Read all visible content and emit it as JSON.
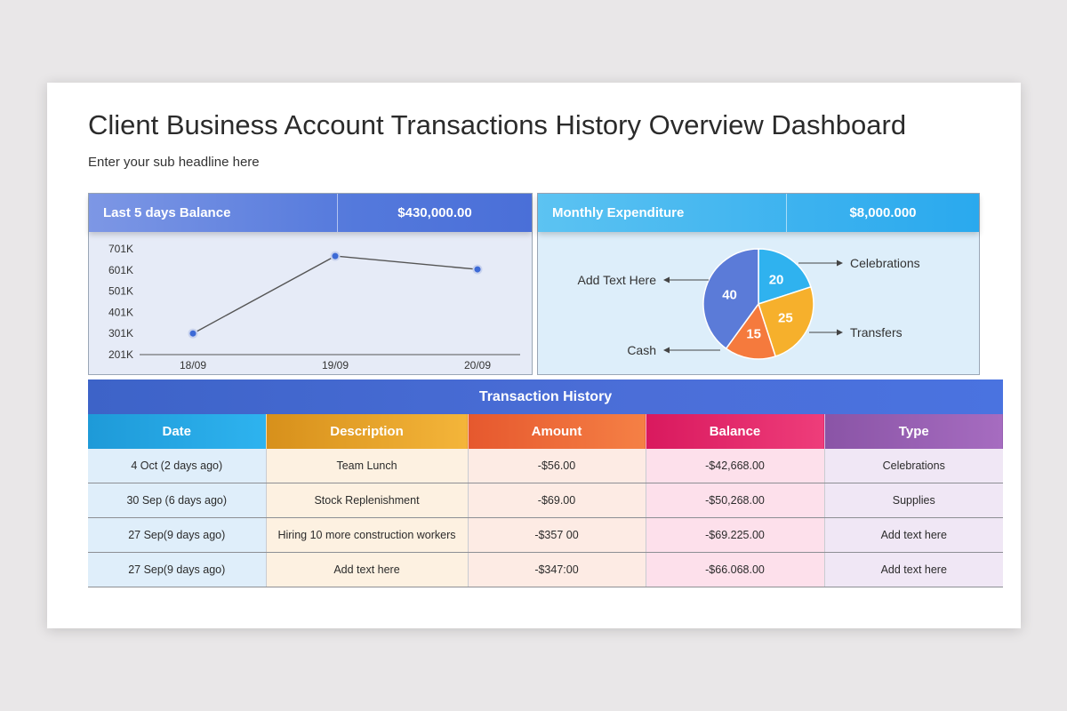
{
  "header": {
    "title": "Client Business Account Transactions History Overview Dashboard",
    "subtitle": "Enter your sub headline here"
  },
  "balance_panel": {
    "label": "Last 5 days Balance",
    "value": "$430,000.00",
    "y_ticks": [
      "701K",
      "601K",
      "501K",
      "401K",
      "301K",
      "201K"
    ],
    "x_ticks": [
      "18/09",
      "19/09",
      "20/09"
    ]
  },
  "expenditure_panel": {
    "label": "Monthly Expenditure",
    "value": "$8,000.000",
    "callouts": {
      "top_left": "Add Text Here",
      "top_right": "Celebrations",
      "bottom_right": "Transfers",
      "bottom_left": "Cash"
    },
    "slice_labels": [
      "20",
      "25",
      "15",
      "40"
    ]
  },
  "colors": {
    "line_point": "#3d6ad6",
    "slice_20": "#2fb2ef",
    "slice_25": "#f6b02c",
    "slice_15": "#f57a3d",
    "slice_40": "#5b7bd8"
  },
  "chart_data": [
    {
      "type": "line",
      "x": [
        "18/09",
        "19/09",
        "20/09"
      ],
      "series": [
        {
          "values": [
            301,
            667,
            604
          ]
        }
      ],
      "ylim": [
        201,
        701
      ],
      "yticks": [
        "701K",
        "601K",
        "501K",
        "401K",
        "301K",
        "201K"
      ],
      "grid": false
    },
    {
      "type": "pie",
      "slices": [
        {
          "value": 20,
          "label": "20",
          "callout": "Celebrations",
          "color": "#2fb2ef"
        },
        {
          "value": 25,
          "label": "25",
          "callout": "Transfers",
          "color": "#f6b02c"
        },
        {
          "value": 15,
          "label": "15",
          "callout": "Cash",
          "color": "#f57a3d"
        },
        {
          "value": 40,
          "label": "40",
          "callout": "Add Text Here",
          "color": "#5b7bd8"
        }
      ]
    }
  ],
  "table": {
    "title": "Transaction History",
    "headers": {
      "date": "Date",
      "description": "Description",
      "amount": "Amount",
      "balance": "Balance",
      "type": "Type"
    },
    "rows": [
      {
        "date": "4 Oct (2 days ago)",
        "description": "Team Lunch",
        "amount": "-$56.00",
        "balance": "-$42,668.00",
        "type": "Celebrations"
      },
      {
        "date": "30 Sep (6 days ago)",
        "description": "Stock Replenishment",
        "amount": "-$69.00",
        "balance": "-$50,268.00",
        "type": "Supplies"
      },
      {
        "date": "27 Sep(9 days ago)",
        "description": "Hiring 10 more construction workers",
        "amount": "-$357 00",
        "balance": "-$69.225.00",
        "type": "Add text here"
      },
      {
        "date": "27 Sep(9 days ago)",
        "description": "Add text here",
        "amount": "-$347:00",
        "balance": "-$66.068.00",
        "type": "Add text here"
      }
    ]
  }
}
